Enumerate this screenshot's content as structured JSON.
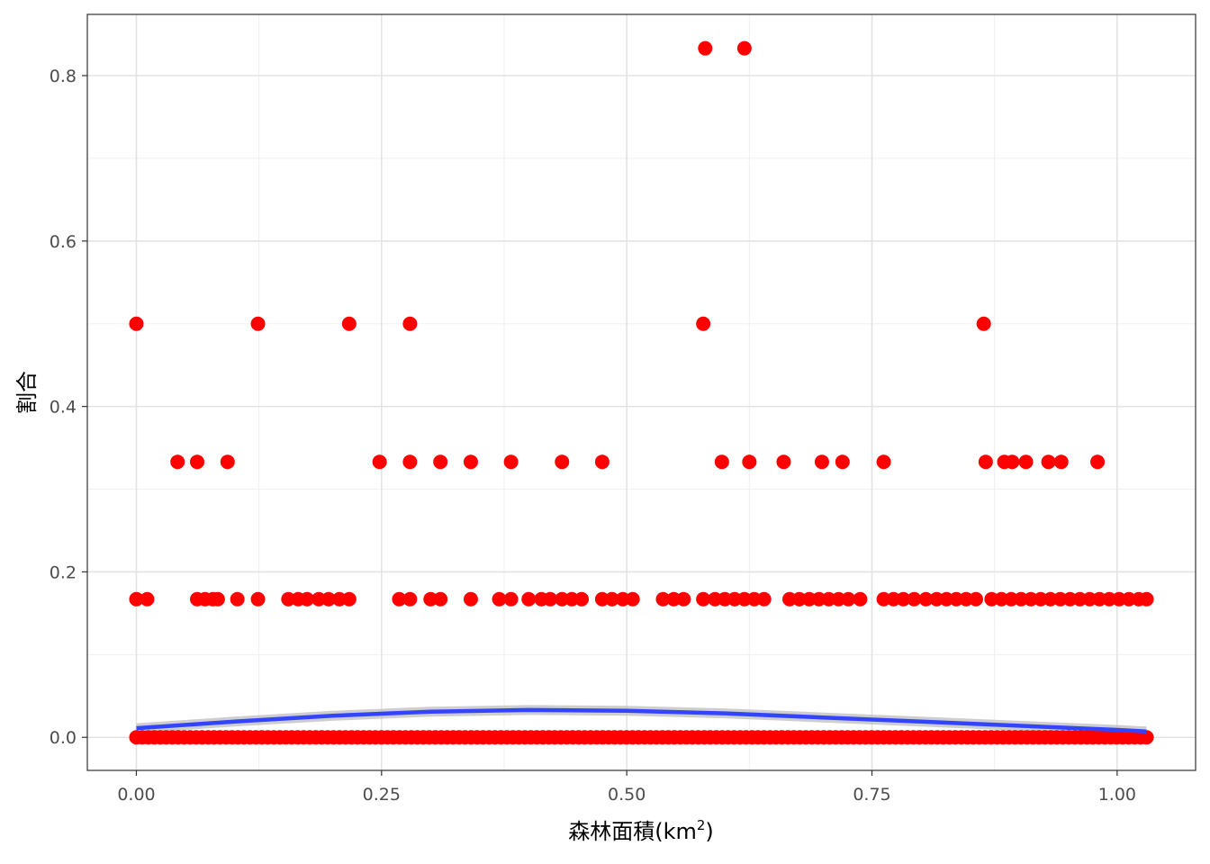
{
  "chart_data": {
    "type": "scatter",
    "title": "",
    "xlabel": "森林面積(km",
    "xlabel_superscript": "2",
    "xlabel_suffix": ")",
    "ylabel": "割合",
    "xlim": [
      -0.05,
      1.08
    ],
    "ylim": [
      -0.04,
      0.874
    ],
    "x_ticks": [
      0.0,
      0.25,
      0.5,
      0.75,
      1.0
    ],
    "x_tick_labels": [
      "0.00",
      "0.25",
      "0.50",
      "0.75",
      "1.00"
    ],
    "y_ticks": [
      0.0,
      0.2,
      0.4,
      0.6,
      0.8
    ],
    "y_tick_labels": [
      "0.0",
      "0.2",
      "0.4",
      "0.6",
      "0.8"
    ],
    "grid": true,
    "legend": "none",
    "point_color": "#ff0000",
    "smooth_color": "#3344ff",
    "ribbon_color": "#bdbdbd",
    "series": [
      {
        "type": "points",
        "points": [
          [
            0.58,
            0.833
          ],
          [
            0.62,
            0.833
          ],
          [
            0.0,
            0.5
          ],
          [
            0.124,
            0.5
          ],
          [
            0.217,
            0.5
          ],
          [
            0.279,
            0.5
          ],
          [
            0.578,
            0.5
          ],
          [
            0.864,
            0.5
          ],
          [
            0.042,
            0.333
          ],
          [
            0.062,
            0.333
          ],
          [
            0.093,
            0.333
          ],
          [
            0.248,
            0.333
          ],
          [
            0.279,
            0.333
          ],
          [
            0.31,
            0.333
          ],
          [
            0.341,
            0.333
          ],
          [
            0.382,
            0.333
          ],
          [
            0.434,
            0.333
          ],
          [
            0.475,
            0.333
          ],
          [
            0.597,
            0.333
          ],
          [
            0.625,
            0.333
          ],
          [
            0.66,
            0.333
          ],
          [
            0.699,
            0.333
          ],
          [
            0.72,
            0.333
          ],
          [
            0.762,
            0.333
          ],
          [
            0.866,
            0.333
          ],
          [
            0.885,
            0.333
          ],
          [
            0.893,
            0.333
          ],
          [
            0.907,
            0.333
          ],
          [
            0.93,
            0.333
          ],
          [
            0.943,
            0.333
          ],
          [
            0.98,
            0.333
          ],
          [
            0.0,
            0.167
          ],
          [
            0.011,
            0.167
          ],
          [
            0.062,
            0.167
          ],
          [
            0.07,
            0.167
          ],
          [
            0.078,
            0.167
          ],
          [
            0.083,
            0.167
          ],
          [
            0.103,
            0.167
          ],
          [
            0.124,
            0.167
          ],
          [
            0.155,
            0.167
          ],
          [
            0.165,
            0.167
          ],
          [
            0.174,
            0.167
          ],
          [
            0.186,
            0.167
          ],
          [
            0.196,
            0.167
          ],
          [
            0.207,
            0.167
          ],
          [
            0.217,
            0.167
          ],
          [
            0.268,
            0.167
          ],
          [
            0.279,
            0.167
          ],
          [
            0.3,
            0.167
          ],
          [
            0.31,
            0.167
          ],
          [
            0.341,
            0.167
          ],
          [
            0.37,
            0.167
          ],
          [
            0.382,
            0.167
          ],
          [
            0.4,
            0.167
          ],
          [
            0.413,
            0.167
          ],
          [
            0.422,
            0.167
          ],
          [
            0.434,
            0.167
          ],
          [
            0.444,
            0.167
          ],
          [
            0.454,
            0.167
          ],
          [
            0.475,
            0.167
          ],
          [
            0.485,
            0.167
          ],
          [
            0.496,
            0.167
          ],
          [
            0.506,
            0.167
          ],
          [
            0.537,
            0.167
          ],
          [
            0.548,
            0.167
          ],
          [
            0.558,
            0.167
          ],
          [
            0.578,
            0.167
          ],
          [
            0.59,
            0.167
          ],
          [
            0.6,
            0.167
          ],
          [
            0.61,
            0.167
          ],
          [
            0.62,
            0.167
          ],
          [
            0.63,
            0.167
          ],
          [
            0.64,
            0.167
          ],
          [
            0.666,
            0.167
          ],
          [
            0.676,
            0.167
          ],
          [
            0.686,
            0.167
          ],
          [
            0.696,
            0.167
          ],
          [
            0.706,
            0.167
          ],
          [
            0.716,
            0.167
          ],
          [
            0.726,
            0.167
          ],
          [
            0.738,
            0.167
          ],
          [
            0.762,
            0.167
          ],
          [
            0.772,
            0.167
          ],
          [
            0.782,
            0.167
          ],
          [
            0.793,
            0.167
          ],
          [
            0.805,
            0.167
          ],
          [
            0.816,
            0.167
          ],
          [
            0.826,
            0.167
          ],
          [
            0.836,
            0.167
          ],
          [
            0.846,
            0.167
          ],
          [
            0.856,
            0.167
          ],
          [
            0.872,
            0.167
          ],
          [
            0.882,
            0.167
          ],
          [
            0.892,
            0.167
          ],
          [
            0.902,
            0.167
          ],
          [
            0.912,
            0.167
          ],
          [
            0.922,
            0.167
          ],
          [
            0.932,
            0.167
          ],
          [
            0.942,
            0.167
          ],
          [
            0.952,
            0.167
          ],
          [
            0.962,
            0.167
          ],
          [
            0.972,
            0.167
          ],
          [
            0.982,
            0.167
          ],
          [
            0.992,
            0.167
          ],
          [
            1.002,
            0.167
          ],
          [
            1.012,
            0.167
          ],
          [
            1.022,
            0.167
          ],
          [
            1.03,
            0.167
          ]
        ],
        "zero_band": {
          "y": 0.0,
          "x_from": 0.0,
          "x_to": 1.03,
          "count": 170
        }
      },
      {
        "type": "smooth",
        "x": [
          0.0,
          0.1,
          0.2,
          0.3,
          0.4,
          0.5,
          0.6,
          0.7,
          0.8,
          0.9,
          1.0,
          1.03
        ],
        "y": [
          0.011,
          0.019,
          0.026,
          0.031,
          0.033,
          0.032,
          0.029,
          0.024,
          0.019,
          0.014,
          0.009,
          0.007
        ],
        "ribbon_halfwidth": 0.006
      }
    ]
  }
}
